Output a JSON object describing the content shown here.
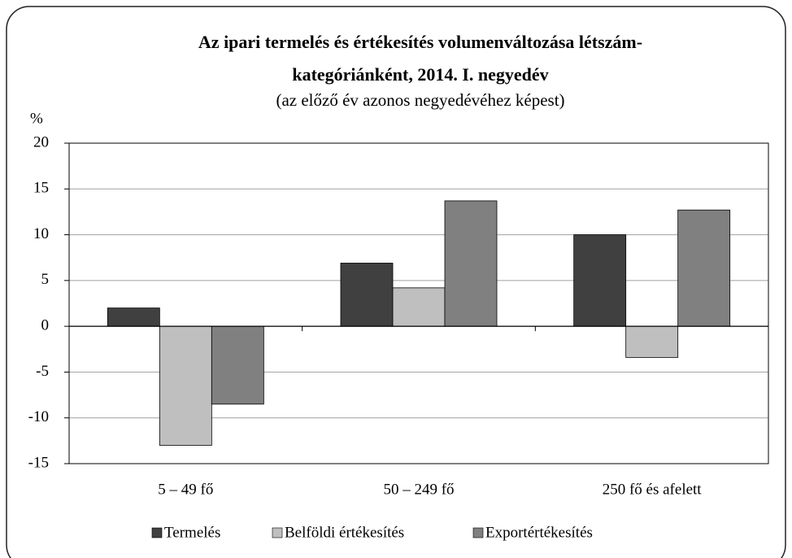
{
  "chart_data": {
    "type": "bar",
    "title": [
      "Az ipari termelés és értékesítés volumenváltozása létszám-",
      "kategóriánként, 2014. I. negyedév"
    ],
    "subtitle": "(az előző év azonos negyedévéhez képest)",
    "y_label": "%",
    "categories": [
      "5 – 49 fő",
      "50 – 249 fő",
      "250 fő és afelett"
    ],
    "series": [
      {
        "name": "Termelés",
        "color": "#404040",
        "values": [
          2.0,
          6.9,
          10.0
        ]
      },
      {
        "name": "Belföldi értékesítés",
        "color": "#bfbfbf",
        "values": [
          -13.0,
          4.2,
          -3.4
        ]
      },
      {
        "name": "Exportértékesítés",
        "color": "#808080",
        "values": [
          -8.5,
          13.7,
          12.7
        ]
      }
    ],
    "ylim": [
      -15,
      20
    ],
    "yticks": [
      -15,
      -10,
      -5,
      0,
      5,
      10,
      15,
      20
    ],
    "grid": true,
    "legend": "bottom"
  }
}
